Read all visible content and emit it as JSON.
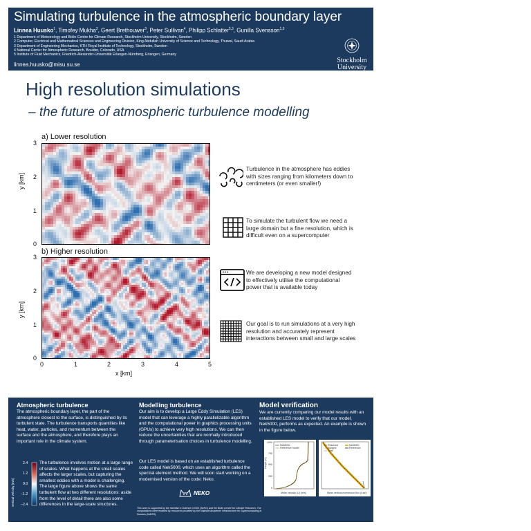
{
  "header": {
    "title": "Simulating turbulence in the atmospheric boundary layer",
    "authors": [
      {
        "name": "Linnea Huusko",
        "sup": "1",
        "bold": true
      },
      {
        "name": ", Timofey Mukha",
        "sup": "2"
      },
      {
        "name": ", Geert Brethouwer",
        "sup": "3"
      },
      {
        "name": ", Peter Sullivan",
        "sup": "4"
      },
      {
        "name": ", Philipp Schlatter",
        "sup": "5,3"
      },
      {
        "name": ", Gunilla Svensson",
        "sup": "1,3"
      }
    ],
    "affiliations": [
      "1 Department of Meteorology and Bolin Centre for Climate Research, Stockholm University, Stockholm, Sweden",
      "2 Computer, Electrical and Mathematical Sciences and Engineering Division, King Abdullah University of Science and Technology, Thuwal, Saudi Arabia",
      "3 Department of Engineering Mechanics, KTH Royal Institute of Technology, Stockholm, Sweden",
      "4 National Center for Atmospheric Research, Boulder, Colorado, USA",
      "5 Institute of Fluid Mechanics, Friedrich-Alexander-Universität Erlangen-Nürnberg, Erlangen, Germany"
    ],
    "email": "linnea.huusko@misu.su.se",
    "logo_line1": "Stockholm",
    "logo_line2": "University"
  },
  "headline": "High resolution simulations",
  "subheadline": "– the future of atmospheric turbulence modelling",
  "plots": {
    "panel_a_label": "a) Lower resolution",
    "panel_b_label": "b) Higher resolution",
    "x_label": "x [km]",
    "y_label": "y [km]",
    "x_ticks": [
      "0",
      "1",
      "2",
      "3",
      "4",
      "5"
    ],
    "y_ticks": [
      "0",
      "1",
      "2",
      "3"
    ],
    "colormap_low": "#2f6fb0",
    "colormap_mid": "#f4f4f4",
    "colormap_high": "#b2182b"
  },
  "info": [
    {
      "icon": "eddies-icon",
      "text": "Turbulence in the atmosphere has eddies with sizes ranging from kilometers down to centimeters (or even smaller!)"
    },
    {
      "icon": "grid-icon",
      "text": "To simulate the turbulent flow we need a large domain but a fine resolution, which is difficult even on a supercomputer"
    },
    {
      "icon": "code-icon",
      "text": "We are developing a new model designed to effectively utilise the computational power that is available today"
    },
    {
      "icon": "fine-grid-icon",
      "text": "Our goal is to run simulations at a very high resolution and accurately represent interactions between small and large scales"
    }
  ],
  "bottom": {
    "col1_title": "Atmospheric turbulence",
    "col1_text": "The atmospheric boundary layer, the part of the atmosphere closest to the surface, is distinguished by its turbulent state. The turbulence transports quantities like heat, water, particles, and momentum between the surface and the atmosphere, and therefore plays an important role in the climate system.",
    "col1_text2": "The turbulence involves motion at a large range of scales. What happens at the small scales affects the larger scales, but capturing the smallest eddies with a model is challenging. The large figure above shows the same turbulent flow at two different resolutions: aside from the level of detail there are also some differences in the large-scale structures.",
    "colorbar_label": "vertical velocity [m/s]",
    "colorbar_ticks": [
      "2.4",
      "1.2",
      "0.0",
      "−1.2",
      "−2.4"
    ],
    "col2_title": "Modelling turbulence",
    "col2_text": "Our aim is to develop a Large Eddy Simulation (LES) model that can leverage a highly parallelizable algorithm and the computational power in graphics processing units (GPUs) to achieve very high resolutions. We can then reduce the uncertainties that are normally introduced through parameterisation choices in turbulence modelling.",
    "col2_text2": "Our LES model is based on an established turbulence code called Nek5000, which uses an algorithm called the spectral element method. We will soon start working on a modernised version of the code: Neko.",
    "neko_label": "NEKO",
    "acknowledgement": "This work is supported by the Swedish e-Science Centre (SeRC) and the Bolin Centre for Climate Research. The computations were enabled by resources provided by the National Academic Infrastructure for Supercomputing in Sweden (NAISS).",
    "col3_title": "Model verification",
    "col3_text": "We are currently comparing our model results with an established LES model to verify that our model, Nek5000, performs as expected. An example is shown in the figure below.",
    "mini1_legend": [
      "Nek5000",
      "Reference model"
    ],
    "mini1_xlabel": "Mean velocity (U) [m/s]",
    "mini1_ylabel": "Height [m]",
    "mini1_yticks": [
      "1000",
      "875",
      "750",
      "625",
      "500",
      "375",
      "250",
      "125",
      "0"
    ],
    "mini2_legend": [
      "Resolved",
      "Subgrid",
      "Total",
      "Nek5000",
      "Reference"
    ],
    "mini2_xlabel": "Mean vertical momentum flux (⟨uw⟩)"
  }
}
